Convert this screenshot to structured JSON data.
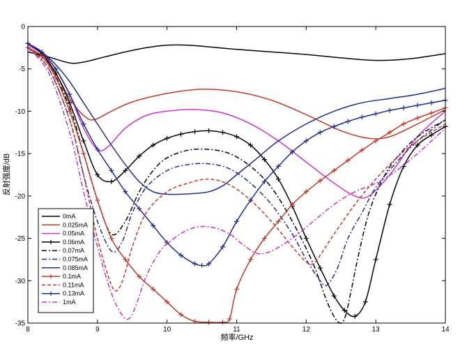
{
  "chart_data": {
    "type": "line",
    "title": "",
    "xlabel": "频率/GHz",
    "ylabel": "反射强度/dB",
    "xlim": [
      8,
      14
    ],
    "ylim": [
      -35,
      0
    ],
    "xticks": [
      "8",
      "9",
      "10",
      "11",
      "12",
      "13",
      "14"
    ],
    "yticks": [
      "0",
      "-5",
      "-10",
      "-15",
      "-20",
      "-25",
      "-30",
      "-35"
    ],
    "grid": false,
    "legend_position": "lower-left",
    "series": [
      {
        "name": "0mA",
        "color": "#000000",
        "style": "solid",
        "marker": "none",
        "x": [
          8,
          8.3,
          8.6,
          8.8,
          9.1,
          9.4,
          9.7,
          10,
          10.3,
          10.6,
          11,
          11.5,
          12,
          12.5,
          13,
          13.5,
          14
        ],
        "y": [
          -3,
          -3.6,
          -4.3,
          -4.2,
          -3.6,
          -3.0,
          -2.5,
          -2.2,
          -2.2,
          -2.4,
          -2.7,
          -3.0,
          -3.3,
          -3.7,
          -4.0,
          -3.8,
          -3.2
        ]
      },
      {
        "name": "0.025mA",
        "color": "#c0392b",
        "style": "solid",
        "marker": "none",
        "x": [
          8,
          8.2,
          8.4,
          8.6,
          8.8,
          8.95,
          9.2,
          9.5,
          10,
          10.5,
          11,
          11.5,
          12,
          12.5,
          12.9,
          13.2,
          13.6,
          14
        ],
        "y": [
          -2.5,
          -3.5,
          -5.5,
          -8.5,
          -10.5,
          -11.0,
          -10.0,
          -8.9,
          -7.9,
          -7.4,
          -7.7,
          -8.7,
          -10.4,
          -12.3,
          -13.2,
          -13.0,
          -11.5,
          -9.8
        ]
      },
      {
        "name": "0.05mA",
        "color": "#cc33cc",
        "style": "solid",
        "marker": "none",
        "x": [
          8,
          8.2,
          8.4,
          8.6,
          8.8,
          9.0,
          9.15,
          9.4,
          9.7,
          10.0,
          10.4,
          10.8,
          11.2,
          11.6,
          12.0,
          12.4,
          12.7,
          12.9,
          13.2,
          13.6,
          14
        ],
        "y": [
          -2.2,
          -3.2,
          -5.0,
          -8.0,
          -12.0,
          -14.5,
          -14.2,
          -12.0,
          -10.5,
          -10.0,
          -9.8,
          -10.2,
          -11.5,
          -13.5,
          -16.0,
          -18.5,
          -20.0,
          -20.0,
          -17.5,
          -13.0,
          -10.0
        ]
      },
      {
        "name": "0.06mA",
        "color": "#000000",
        "style": "solid",
        "marker": "plus",
        "x": [
          8,
          8.2,
          8.4,
          8.6,
          8.8,
          9.0,
          9.2,
          9.4,
          9.6,
          9.8,
          10.0,
          10.2,
          10.4,
          10.6,
          10.8,
          11.0,
          11.2,
          11.4,
          11.6,
          11.8,
          12.0,
          12.2,
          12.4,
          12.55,
          12.7,
          12.85,
          13.0,
          13.2,
          13.4,
          13.6,
          13.8,
          14
        ],
        "y": [
          -2.0,
          -3.2,
          -5.5,
          -9.0,
          -13.5,
          -17.5,
          -18.3,
          -17.0,
          -15.3,
          -14.0,
          -13.2,
          -12.7,
          -12.4,
          -12.3,
          -12.5,
          -13.0,
          -14.0,
          -15.7,
          -18.0,
          -21.2,
          -25.0,
          -28.5,
          -31.8,
          -33.5,
          -34.2,
          -32.5,
          -27.5,
          -21.0,
          -16.5,
          -14.0,
          -12.8,
          -11.8
        ]
      },
      {
        "name": "0.07mA",
        "color": "#000000",
        "style": "dashdot",
        "marker": "none",
        "x": [
          8,
          8.3,
          8.6,
          8.8,
          9.0,
          9.2,
          9.4,
          9.6,
          9.8,
          10.0,
          10.3,
          10.6,
          10.9,
          11.2,
          11.5,
          11.8,
          12.1,
          12.3,
          12.45,
          12.55,
          12.65,
          12.75,
          12.9,
          13.1,
          13.3,
          13.6,
          14
        ],
        "y": [
          -2.5,
          -4.5,
          -9.5,
          -15.0,
          -20.5,
          -24.5,
          -23.0,
          -19.5,
          -17.0,
          -15.5,
          -14.6,
          -14.5,
          -15.0,
          -16.5,
          -19.0,
          -23.0,
          -28.0,
          -32.5,
          -34.8,
          -34.5,
          -31.0,
          -27.0,
          -22.0,
          -18.0,
          -15.5,
          -13.0,
          -11.0
        ]
      },
      {
        "name": "0.075mA",
        "color": "#1f2d8a",
        "style": "dashdot",
        "marker": "none",
        "x": [
          8,
          8.3,
          8.6,
          8.8,
          9.0,
          9.2,
          9.35,
          9.5,
          9.7,
          10.0,
          10.3,
          10.6,
          10.9,
          11.2,
          11.5,
          11.8,
          12.0,
          12.2,
          12.3,
          12.45,
          12.6,
          12.8,
          13.0,
          13.3,
          13.6,
          14
        ],
        "y": [
          -2.5,
          -5.0,
          -11.0,
          -17.5,
          -23.0,
          -26.5,
          -25.5,
          -22.0,
          -19.0,
          -17.0,
          -16.3,
          -16.2,
          -16.8,
          -18.5,
          -21.0,
          -24.5,
          -27.5,
          -30.0,
          -30.5,
          -28.5,
          -25.0,
          -22.0,
          -19.0,
          -16.0,
          -13.5,
          -11.0
        ]
      },
      {
        "name": "0.085mA",
        "color": "#1f2d8a",
        "style": "solid",
        "marker": "none",
        "x": [
          8,
          8.2,
          8.4,
          8.6,
          8.8,
          9.0,
          9.2,
          9.4,
          9.6,
          9.8,
          10.0,
          10.2,
          10.4,
          10.6,
          10.8,
          11.0,
          11.3,
          11.6,
          12.0,
          12.4,
          12.8,
          13.2,
          13.6,
          14
        ],
        "y": [
          -2.0,
          -3.0,
          -4.5,
          -6.5,
          -9.0,
          -11.5,
          -14.0,
          -16.3,
          -18.3,
          -19.5,
          -19.8,
          -19.8,
          -19.7,
          -19.5,
          -18.8,
          -17.5,
          -15.5,
          -13.5,
          -11.5,
          -10.0,
          -9.0,
          -8.5,
          -8.0,
          -7.3
        ]
      },
      {
        "name": "0.1mA",
        "color": "#c0392b",
        "style": "solid",
        "marker": "plus",
        "x": [
          8,
          8.2,
          8.4,
          8.6,
          8.8,
          9.0,
          9.2,
          9.4,
          9.6,
          9.8,
          10.0,
          10.2,
          10.4,
          10.6,
          10.8,
          10.9,
          11.0,
          11.2,
          11.4,
          11.6,
          11.8,
          12.0,
          12.2,
          12.4,
          12.6,
          12.8,
          13.0,
          13.2,
          13.4,
          13.6,
          13.8,
          14
        ],
        "y": [
          -2.5,
          -3.5,
          -6.0,
          -10.0,
          -15.0,
          -20.5,
          -25.0,
          -27.5,
          -29.5,
          -31.0,
          -32.5,
          -34.0,
          -34.8,
          -34.9,
          -34.9,
          -34.5,
          -31.0,
          -27.5,
          -25.0,
          -23.0,
          -21.0,
          -19.5,
          -18.2,
          -17.0,
          -15.8,
          -14.6,
          -13.5,
          -12.5,
          -11.5,
          -10.8,
          -10.2,
          -9.6
        ]
      },
      {
        "name": "0.11mA",
        "color": "#c0392b",
        "style": "dashed",
        "marker": "none",
        "x": [
          8,
          8.3,
          8.6,
          8.8,
          9.0,
          9.2,
          9.3,
          9.4,
          9.5,
          9.7,
          10.0,
          10.3,
          10.6,
          10.9,
          11.2,
          11.5,
          11.8,
          12.0,
          12.1,
          12.2,
          12.4,
          12.7,
          13.0,
          13.3,
          13.6,
          14
        ],
        "y": [
          -2.5,
          -5.0,
          -11.0,
          -17.5,
          -25.0,
          -30.5,
          -31.0,
          -29.0,
          -26.0,
          -22.0,
          -19.5,
          -18.5,
          -18.0,
          -18.7,
          -20.5,
          -23.0,
          -26.0,
          -27.8,
          -28.0,
          -27.0,
          -24.5,
          -21.0,
          -18.0,
          -15.5,
          -13.5,
          -11.5
        ]
      },
      {
        "name": "0.13mA",
        "color": "#1f2d8a",
        "style": "solid",
        "marker": "plus",
        "x": [
          8,
          8.2,
          8.4,
          8.6,
          8.8,
          9.0,
          9.2,
          9.4,
          9.6,
          9.8,
          10.0,
          10.2,
          10.4,
          10.5,
          10.6,
          10.8,
          11.0,
          11.2,
          11.4,
          11.6,
          11.8,
          12.0,
          12.2,
          12.4,
          12.6,
          12.8,
          13.0,
          13.2,
          13.4,
          13.6,
          13.8,
          14
        ],
        "y": [
          -2.0,
          -3.0,
          -5.0,
          -8.0,
          -11.5,
          -14.5,
          -17.0,
          -19.5,
          -21.5,
          -23.5,
          -25.5,
          -27.0,
          -28.0,
          -28.2,
          -28.0,
          -26.0,
          -23.0,
          -20.5,
          -18.3,
          -16.5,
          -14.8,
          -13.5,
          -12.5,
          -11.8,
          -11.2,
          -10.7,
          -10.3,
          -9.9,
          -9.6,
          -9.3,
          -9.0,
          -8.7
        ]
      },
      {
        "name": "1mA",
        "color": "#cc33cc",
        "style": "dashdot",
        "marker": "none",
        "x": [
          8,
          8.3,
          8.6,
          8.8,
          9.0,
          9.2,
          9.35,
          9.45,
          9.55,
          9.7,
          9.9,
          10.1,
          10.3,
          10.5,
          10.7,
          10.9,
          11.1,
          11.3,
          11.5,
          11.8,
          12.1,
          12.4,
          12.7,
          13.0,
          13.3,
          13.6,
          13.8,
          14
        ],
        "y": [
          -2.5,
          -5.5,
          -12.5,
          -19.5,
          -26.0,
          -31.5,
          -34.0,
          -34.5,
          -33.0,
          -29.5,
          -26.5,
          -25.0,
          -24.0,
          -23.6,
          -23.8,
          -24.5,
          -25.8,
          -26.8,
          -26.5,
          -25.0,
          -23.0,
          -21.0,
          -19.5,
          -18.5,
          -17.0,
          -15.0,
          -13.5,
          -12.0
        ]
      }
    ]
  }
}
